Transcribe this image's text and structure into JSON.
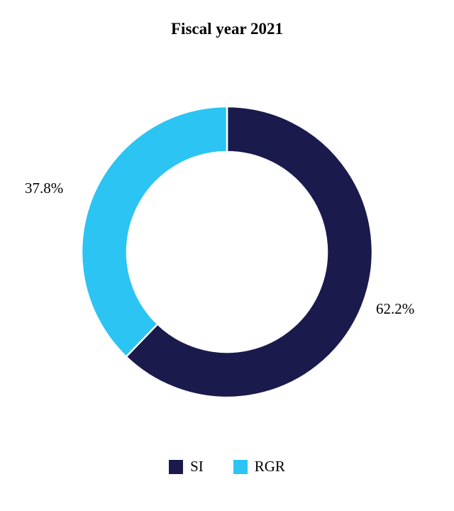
{
  "chart_data": {
    "type": "pie",
    "subtype": "donut",
    "title": "Fiscal year 2021",
    "series": [
      {
        "name": "SI",
        "value": 62.2,
        "label": "62.2%",
        "color": "#1a1a4d"
      },
      {
        "name": "RGR",
        "value": 37.8,
        "label": "37.8%",
        "color": "#2bc4f3"
      }
    ],
    "start_angle_deg": -90,
    "direction": "clockwise",
    "inner_radius_ratio": 0.69,
    "legend_position": "bottom",
    "data_labels": "outside"
  },
  "labels": {
    "si_pct": "62.2%",
    "rgr_pct": "37.8%"
  },
  "legend": {
    "items": [
      {
        "label": "SI",
        "color": "#1a1a4d"
      },
      {
        "label": "RGR",
        "color": "#2bc4f3"
      }
    ]
  }
}
